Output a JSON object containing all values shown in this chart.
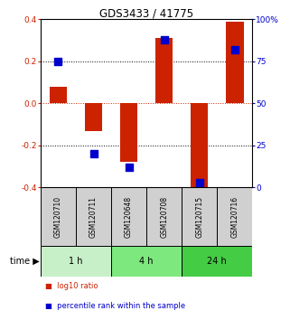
{
  "title": "GDS3433 / 41775",
  "samples": [
    "GSM120710",
    "GSM120711",
    "GSM120648",
    "GSM120708",
    "GSM120715",
    "GSM120716"
  ],
  "log10_ratio": [
    0.08,
    -0.13,
    -0.28,
    0.31,
    -0.41,
    0.39
  ],
  "percentile_rank": [
    75,
    20,
    12,
    88,
    3,
    82
  ],
  "time_groups": [
    {
      "label": "1 h",
      "start": 0,
      "end": 2,
      "color": "#c8f0c8"
    },
    {
      "label": "4 h",
      "start": 2,
      "end": 4,
      "color": "#7de87d"
    },
    {
      "label": "24 h",
      "start": 4,
      "end": 6,
      "color": "#44cc44"
    }
  ],
  "bar_color": "#cc2200",
  "dot_color": "#0000cc",
  "ylim_left": [
    -0.4,
    0.4
  ],
  "ylim_right": [
    0,
    100
  ],
  "yticks_left": [
    -0.4,
    -0.2,
    0.0,
    0.2,
    0.4
  ],
  "yticks_right": [
    0,
    25,
    50,
    75,
    100
  ],
  "ytick_labels_right": [
    "0",
    "25",
    "50",
    "75",
    "100%"
  ],
  "hlines_dotted": [
    -0.2,
    0.2
  ],
  "hline_zero_color": "#cc2200",
  "background_color": "#ffffff",
  "sample_box_color": "#d0d0d0",
  "bar_width": 0.5,
  "dot_size": 30,
  "time_label": "time",
  "legend": [
    {
      "label": "log10 ratio",
      "color": "#cc2200"
    },
    {
      "label": "percentile rank within the sample",
      "color": "#0000cc"
    }
  ]
}
